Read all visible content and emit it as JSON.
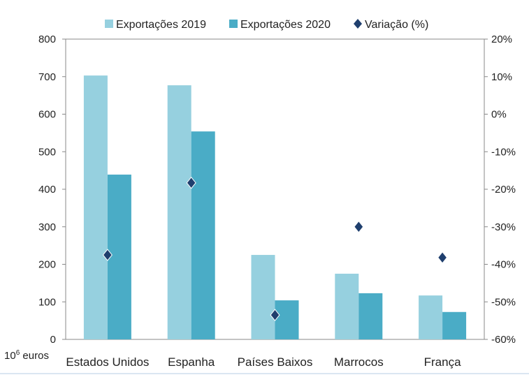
{
  "chart_data": {
    "type": "bar",
    "categories": [
      "Estados Unidos",
      "Espanha",
      "Países Baixos",
      "Marrocos",
      "França"
    ],
    "series": [
      {
        "name": "Exportações 2019",
        "axis": "left",
        "kind": "bar",
        "color": "#96d0df",
        "values": [
          703,
          677,
          225,
          175,
          117
        ]
      },
      {
        "name": "Exportações 2020",
        "axis": "left",
        "kind": "bar",
        "color": "#4aacc6",
        "values": [
          439,
          554,
          104,
          123,
          73
        ]
      },
      {
        "name": "Variação (%)",
        "axis": "right",
        "kind": "scatter",
        "marker": "diamond",
        "color": "#1f3f6e",
        "values": [
          -37.5,
          -18.3,
          -53.5,
          -30.0,
          -38.2
        ]
      }
    ],
    "ylabel": "10⁶ euros",
    "ylim": [
      0,
      800
    ],
    "yticks": [
      "0",
      "100",
      "200",
      "300",
      "400",
      "500",
      "600",
      "700",
      "800"
    ],
    "y2lim": [
      -60,
      20
    ],
    "y2ticks": [
      "-60%",
      "-50%",
      "-40%",
      "-30%",
      "-20%",
      "-10%",
      "0%",
      "10%",
      "20%"
    ],
    "grid": false,
    "legend": "top"
  }
}
